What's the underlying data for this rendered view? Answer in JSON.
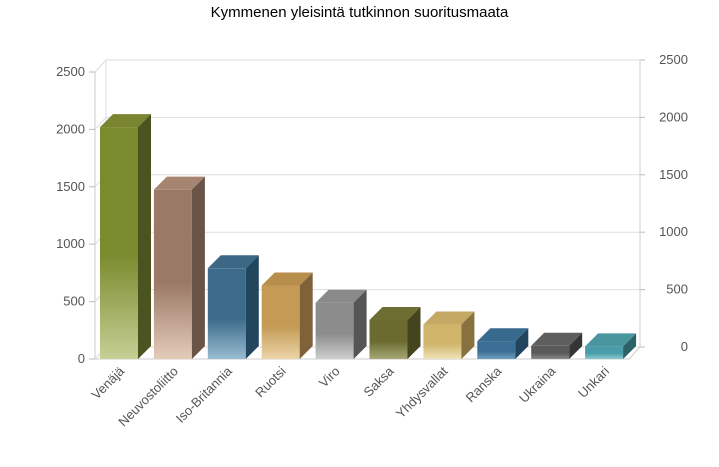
{
  "title": "Kymmenen yleisintä tutkinnon suoritusmaata",
  "chart_data": {
    "type": "bar",
    "title": "Kymmenen yleisintä tutkinnon suoritusmaata",
    "categories": [
      "Venäjä",
      "Neuvostoliitto",
      "Iso-Britannia",
      "Ruotsi",
      "Viro",
      "Saksa",
      "Yhdysvallat",
      "Ranska",
      "Ukraina",
      "Unkari"
    ],
    "values": [
      2020,
      1475,
      790,
      640,
      490,
      340,
      300,
      155,
      115,
      110
    ],
    "ylim": [
      0,
      2500
    ],
    "yticks": [
      "0",
      "500",
      "1000",
      "1500",
      "2000",
      "2500"
    ],
    "right_axis": true,
    "grid": true,
    "legend": "none",
    "colors": [
      {
        "front": "#7a8b2e",
        "light": "#c6cf94",
        "top": "#7a8530",
        "side": "#4b5320"
      },
      {
        "front": "#9a7a66",
        "light": "#e4cbb9",
        "top": "#a58470",
        "side": "#6a5447"
      },
      {
        "front": "#3c6a8a",
        "light": "#98bcd2",
        "top": "#3d6885",
        "side": "#23465f"
      },
      {
        "front": "#c49a55",
        "light": "#ecd5a8",
        "top": "#b88e4d",
        "side": "#80623a"
      },
      {
        "front": "#8c8c8c",
        "light": "#cfcfcf",
        "top": "#8a8a8a",
        "side": "#555555"
      },
      {
        "front": "#6b6b30",
        "light": "#a8a878",
        "top": "#6e6e32",
        "side": "#44441e"
      },
      {
        "front": "#d0b46a",
        "light": "#f0e2b8",
        "top": "#c4a964",
        "side": "#86713f"
      },
      {
        "front": "#3a6e94",
        "light": "#6e9cbe",
        "top": "#386a8e",
        "side": "#22445e"
      },
      {
        "front": "#5a5a5a",
        "light": "#8a8a8a",
        "top": "#5e5e5e",
        "side": "#353535"
      },
      {
        "front": "#4a9ca8",
        "light": "#8ccbd3",
        "top": "#4a969f",
        "side": "#2d6168"
      }
    ]
  }
}
